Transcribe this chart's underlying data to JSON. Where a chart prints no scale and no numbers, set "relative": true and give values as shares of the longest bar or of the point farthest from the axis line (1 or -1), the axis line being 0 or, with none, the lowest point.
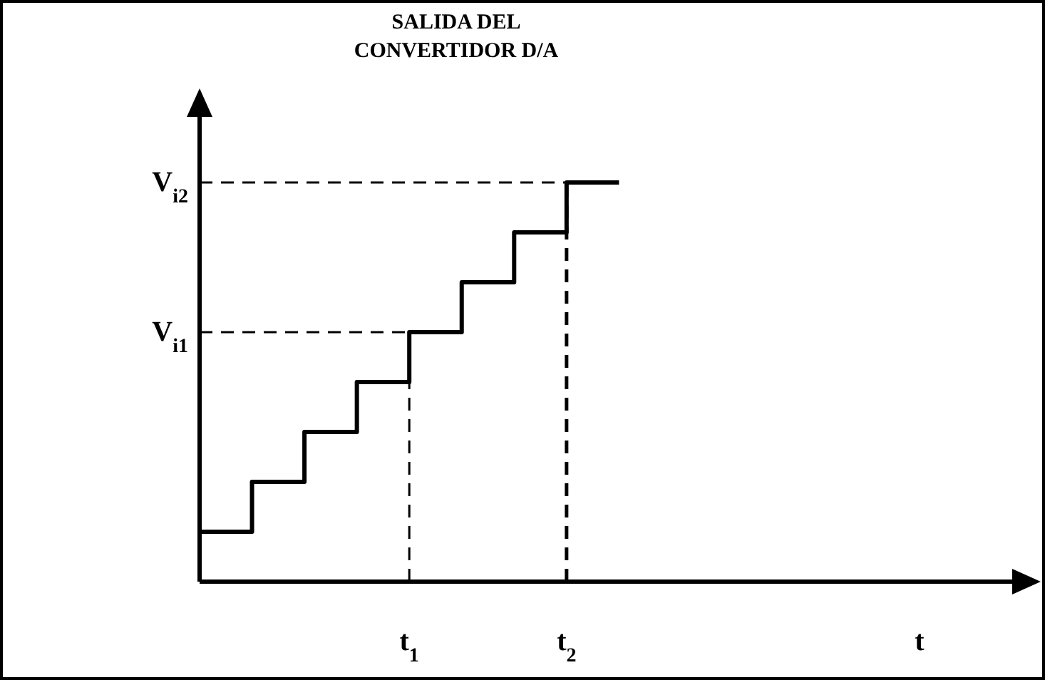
{
  "chart_data": {
    "type": "step",
    "title": "SALIDA DEL\nCONVERTIDOR D/A",
    "xlabel": "t",
    "relative": true,
    "categories": [
      null,
      null,
      null,
      null,
      "t$_{1}$",
      null,
      null,
      "t$_{2}$",
      null,
      null,
      null,
      null,
      null,
      null,
      null,
      null
    ],
    "series": [
      {
        "color": "#000000",
        "values": [
          0.125,
          0.25,
          0.375,
          0.5,
          0.625,
          0.75,
          0.875,
          1,
          1,
          null,
          null,
          null,
          null,
          null,
          null,
          null
        ]
      }
    ],
    "ref_lines": [
      {
        "axis": "y",
        "value": 0.625,
        "label": "V$_{i1}$",
        "line_style": "dashed",
        "color": "#000000"
      },
      {
        "axis": "y",
        "value": 1,
        "label": "V$_{i2}$",
        "line_style": "dashed",
        "color": "#000000"
      },
      {
        "axis": "x",
        "value": "t$_{1}$",
        "line_style": "dashed",
        "color": "#000000"
      },
      {
        "axis": "x",
        "value": "t$_{2}$",
        "line_style": "dashed",
        "color": "#000000"
      }
    ],
    "line_style": "solid"
  }
}
